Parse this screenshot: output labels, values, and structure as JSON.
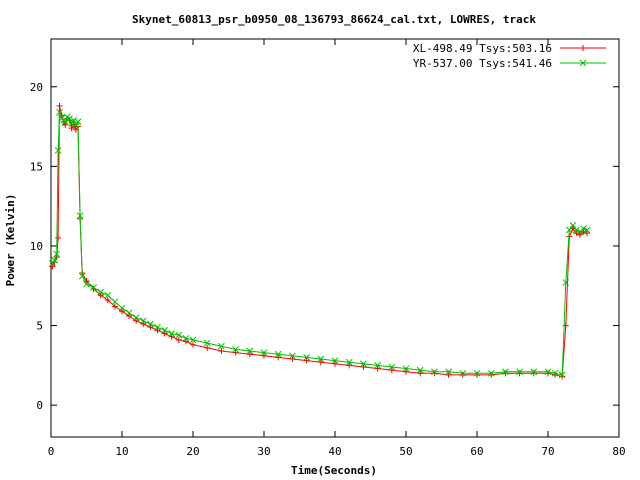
{
  "chart_data": {
    "type": "scatter",
    "title": "Skynet_60813_psr_b0950_08_136793_86624_cal.txt, LOWRES, track",
    "xlabel": "Time(Seconds)",
    "ylabel": "Power (Kelvin)",
    "xlim": [
      0,
      80
    ],
    "ylim": [
      -2,
      23
    ],
    "x_ticks": [
      0,
      10,
      20,
      30,
      40,
      50,
      60,
      70,
      80
    ],
    "y_ticks": [
      0,
      5,
      10,
      15,
      20
    ],
    "x_tick_labels": [
      "0",
      "10",
      "20",
      "30",
      "40",
      "50",
      "60",
      "70",
      "80"
    ],
    "y_tick_labels": [
      "0",
      "5",
      "10",
      "15",
      "20"
    ],
    "grid": false,
    "legend_position": "top-right",
    "series": [
      {
        "name": "XL-498.49 Tsys:503.16",
        "color": "#ff0000",
        "marker": "plus",
        "x": [
          0.2,
          0.5,
          0.8,
          1.0,
          1.2,
          1.5,
          1.8,
          2.0,
          2.3,
          2.6,
          2.9,
          3.2,
          3.5,
          3.8,
          4.1,
          4.4,
          5,
          6,
          7,
          8,
          9,
          10,
          11,
          12,
          13,
          14,
          15,
          16,
          17,
          18,
          19,
          20,
          22,
          24,
          26,
          28,
          30,
          32,
          34,
          36,
          38,
          40,
          42,
          44,
          46,
          48,
          50,
          52,
          54,
          56,
          58,
          60,
          62,
          64,
          66,
          68,
          70,
          71,
          72,
          72.5,
          73,
          73.5,
          74,
          74.5,
          75,
          75.5
        ],
        "y": [
          8.7,
          9.0,
          9.3,
          10.5,
          18.8,
          18.2,
          17.8,
          17.6,
          18.0,
          17.9,
          17.4,
          17.6,
          17.3,
          17.5,
          11.7,
          8.3,
          7.8,
          7.3,
          6.9,
          6.6,
          6.2,
          5.9,
          5.6,
          5.3,
          5.1,
          4.9,
          4.7,
          4.5,
          4.3,
          4.1,
          4.0,
          3.8,
          3.6,
          3.4,
          3.3,
          3.2,
          3.1,
          3.0,
          2.9,
          2.8,
          2.7,
          2.6,
          2.5,
          2.4,
          2.3,
          2.2,
          2.1,
          2.0,
          2.0,
          1.9,
          1.9,
          1.9,
          1.9,
          2.0,
          2.0,
          2.0,
          2.0,
          1.9,
          1.8,
          5.0,
          10.6,
          11.1,
          10.8,
          10.7,
          10.9,
          10.8
        ]
      },
      {
        "name": "YR-537.00 Tsys:541.46",
        "color": "#00c000",
        "marker": "cross",
        "x": [
          0.2,
          0.5,
          0.8,
          1.0,
          1.2,
          1.5,
          1.8,
          2.0,
          2.3,
          2.6,
          2.9,
          3.2,
          3.5,
          3.8,
          4.1,
          4.4,
          5,
          6,
          7,
          8,
          9,
          10,
          11,
          12,
          13,
          14,
          15,
          16,
          17,
          18,
          19,
          20,
          22,
          24,
          26,
          28,
          30,
          32,
          34,
          36,
          38,
          40,
          42,
          44,
          46,
          48,
          50,
          52,
          54,
          56,
          58,
          60,
          62,
          64,
          66,
          68,
          70,
          71,
          72,
          72.5,
          73,
          73.5,
          74,
          74.5,
          75,
          75.5
        ],
        "y": [
          8.9,
          9.1,
          9.5,
          16.0,
          18.4,
          18.0,
          17.9,
          17.8,
          18.1,
          18.0,
          17.7,
          17.9,
          17.6,
          17.8,
          11.9,
          8.1,
          7.6,
          7.4,
          7.1,
          6.9,
          6.5,
          6.1,
          5.8,
          5.5,
          5.3,
          5.1,
          4.9,
          4.7,
          4.5,
          4.4,
          4.2,
          4.1,
          3.9,
          3.7,
          3.5,
          3.4,
          3.3,
          3.2,
          3.1,
          3.0,
          2.9,
          2.8,
          2.7,
          2.6,
          2.5,
          2.4,
          2.3,
          2.2,
          2.1,
          2.1,
          2.0,
          2.0,
          2.0,
          2.1,
          2.1,
          2.1,
          2.1,
          2.0,
          1.9,
          7.7,
          11.0,
          11.3,
          11.0,
          10.9,
          11.1,
          11.0
        ]
      }
    ]
  }
}
